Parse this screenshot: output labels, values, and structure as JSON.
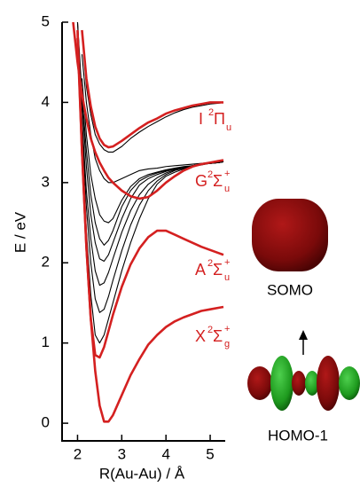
{
  "chart_data": {
    "type": "line",
    "x_label": "R(Au-Au) / Å",
    "y_label": "E / eV",
    "xlim": [
      1.65,
      5.3
    ],
    "ylim": [
      -0.22,
      5
    ],
    "xticks": [
      2,
      3,
      4,
      5
    ],
    "yticks": [
      0,
      1,
      2,
      3,
      4,
      5
    ],
    "x": [
      1.9,
      2.0,
      2.1,
      2.2,
      2.3,
      2.4,
      2.5,
      2.6,
      2.7,
      2.8,
      3.0,
      3.2,
      3.4,
      3.6,
      3.8,
      4.0,
      4.2,
      4.4,
      4.6,
      4.8,
      5.0,
      5.2,
      5.3
    ],
    "series": [
      {
        "color": "#d42020",
        "values": [
          null,
          4.9,
          3.4,
          2.2,
          1.3,
          0.65,
          0.22,
          0.02,
          0.02,
          0.1,
          0.35,
          0.6,
          0.8,
          0.98,
          1.1,
          1.2,
          1.27,
          1.32,
          1.36,
          1.4,
          1.42,
          1.44,
          1.45
        ]
      },
      {
        "color": "#d42020",
        "values": [
          null,
          4.8,
          3.4,
          2.2,
          1.3,
          0.85,
          0.82,
          0.95,
          1.15,
          1.35,
          1.7,
          1.98,
          2.18,
          2.32,
          2.4,
          2.4,
          2.35,
          2.3,
          2.25,
          2.2,
          2.16,
          2.12,
          2.1
        ]
      },
      {
        "color": "#d42020",
        "values": [
          5.0,
          4.5,
          4.1,
          3.8,
          3.55,
          3.38,
          3.25,
          3.15,
          3.06,
          3.0,
          2.9,
          2.83,
          2.8,
          2.82,
          2.9,
          3.0,
          3.08,
          3.15,
          3.2,
          3.23,
          3.25,
          3.27,
          3.28
        ]
      },
      {
        "color": "#d42020",
        "values": [
          null,
          null,
          4.9,
          4.3,
          3.95,
          3.7,
          3.55,
          3.47,
          3.44,
          3.45,
          3.52,
          3.6,
          3.68,
          3.75,
          3.8,
          3.86,
          3.9,
          3.93,
          3.96,
          3.98,
          4.0,
          4.0,
          4.0
        ]
      },
      {
        "color": "#000000",
        "values": [
          null,
          4.9,
          3.5,
          2.4,
          1.6,
          1.1,
          1.0,
          1.1,
          1.3,
          1.5,
          1.9,
          2.25,
          2.55,
          2.8,
          2.98,
          3.08,
          3.13,
          3.17,
          3.2,
          3.22,
          3.24,
          3.25,
          3.26
        ]
      },
      {
        "color": "#000000",
        "values": [
          null,
          4.9,
          3.7,
          2.7,
          2.0,
          1.55,
          1.38,
          1.42,
          1.58,
          1.78,
          2.15,
          2.47,
          2.72,
          2.9,
          3.02,
          3.1,
          3.15,
          3.18,
          3.21,
          3.23,
          3.24,
          3.25,
          3.26
        ]
      },
      {
        "color": "#000000",
        "values": [
          null,
          4.9,
          3.8,
          2.9,
          2.3,
          1.9,
          1.72,
          1.75,
          1.88,
          2.05,
          2.38,
          2.65,
          2.85,
          2.98,
          3.06,
          3.12,
          3.16,
          3.19,
          3.21,
          3.23,
          3.24,
          3.25,
          3.26
        ]
      },
      {
        "color": "#000000",
        "values": [
          null,
          5.0,
          4.0,
          3.2,
          2.6,
          2.25,
          2.05,
          2.02,
          2.1,
          2.25,
          2.55,
          2.8,
          2.97,
          3.05,
          3.1,
          3.14,
          3.17,
          3.19,
          3.21,
          3.23,
          3.24,
          3.25,
          3.26
        ]
      },
      {
        "color": "#000000",
        "values": [
          null,
          5.0,
          4.1,
          3.4,
          2.85,
          2.5,
          2.3,
          2.22,
          2.28,
          2.4,
          2.7,
          2.9,
          3.02,
          3.08,
          3.12,
          3.15,
          3.17,
          3.19,
          3.21,
          3.23,
          3.24,
          3.25,
          3.26
        ]
      },
      {
        "color": "#000000",
        "values": [
          null,
          null,
          4.3,
          3.6,
          3.1,
          2.8,
          2.6,
          2.52,
          2.5,
          2.55,
          2.78,
          2.95,
          3.05,
          3.1,
          3.13,
          3.16,
          3.18,
          3.2,
          3.21,
          3.23,
          3.24,
          3.25,
          3.26
        ]
      },
      {
        "color": "#000000",
        "values": [
          null,
          null,
          4.6,
          4.0,
          3.6,
          3.3,
          3.15,
          3.05,
          3.0,
          3.0,
          3.05,
          3.1,
          3.15,
          3.17,
          3.18,
          3.2,
          3.21,
          3.22,
          3.23,
          3.24,
          3.25,
          3.25,
          3.26
        ]
      },
      {
        "color": "#000000",
        "values": [
          null,
          null,
          4.9,
          4.2,
          3.85,
          3.6,
          3.48,
          3.41,
          3.38,
          3.38,
          3.45,
          3.55,
          3.63,
          3.7,
          3.76,
          3.82,
          3.87,
          3.91,
          3.94,
          3.96,
          3.98,
          3.99,
          4.0
        ]
      }
    ],
    "annotations": [
      {
        "letter": "I",
        "sup": "2",
        "symbol": "Π",
        "sub": "u"
      },
      {
        "letter": "G",
        "sup": "2",
        "symbol": "Σ",
        "symbol_sup": "+",
        "sub": "u"
      },
      {
        "letter": "A",
        "sup": "2",
        "symbol": "Σ",
        "symbol_sup": "+",
        "sub": "u"
      },
      {
        "letter": "X",
        "sup": "2",
        "symbol": "Σ",
        "symbol_sup": "+",
        "sub": "g"
      }
    ]
  },
  "orbitals": {
    "upper": "SOMO",
    "lower": "HOMO-1"
  }
}
